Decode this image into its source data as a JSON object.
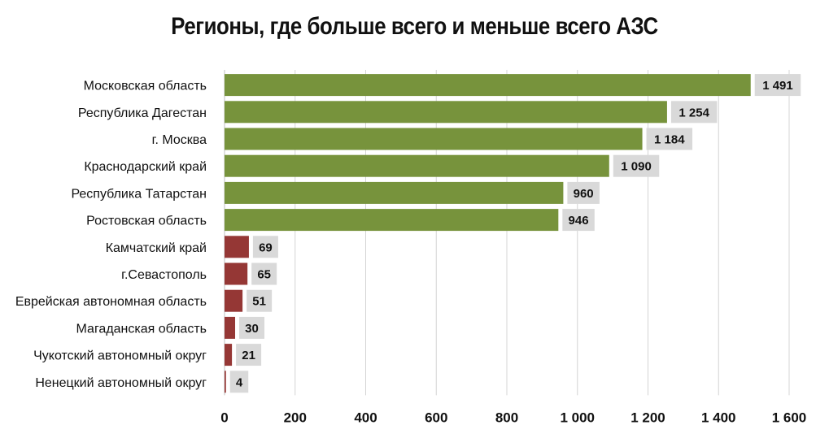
{
  "chart_data": {
    "type": "bar",
    "orientation": "horizontal",
    "title": "Регионы, где больше всего и меньше всего АЗС",
    "categories": [
      "Московская область",
      "Республика Дагестан",
      "г. Москва",
      "Краснодарский край",
      "Республика Татарстан",
      "Ростовская область",
      "Камчатский край",
      "г.Севастополь",
      "Еврейская автономная область",
      "Магаданская область",
      "Чукотский автономный округ",
      "Ненецкий  автономный округ"
    ],
    "values": [
      1491,
      1254,
      1184,
      1090,
      960,
      946,
      69,
      65,
      51,
      30,
      21,
      4
    ],
    "value_labels": [
      "1 491",
      "1 254",
      "1 184",
      "1 090",
      "960",
      "946",
      "69",
      "65",
      "51",
      "30",
      "21",
      "4"
    ],
    "colors": [
      "#77933c",
      "#77933c",
      "#77933c",
      "#77933c",
      "#77933c",
      "#77933c",
      "#953735",
      "#953735",
      "#953735",
      "#953735",
      "#953735",
      "#953735"
    ],
    "label_bg": "#d9d9d9",
    "xlim": [
      0,
      1600
    ],
    "xticks": [
      0,
      200,
      400,
      600,
      800,
      1000,
      1200,
      1400,
      1600
    ],
    "xtick_labels": [
      "0",
      "200",
      "400",
      "600",
      "800",
      "1 000",
      "1 200",
      "1 400",
      "1 600"
    ],
    "grid": true,
    "legend": false
  }
}
